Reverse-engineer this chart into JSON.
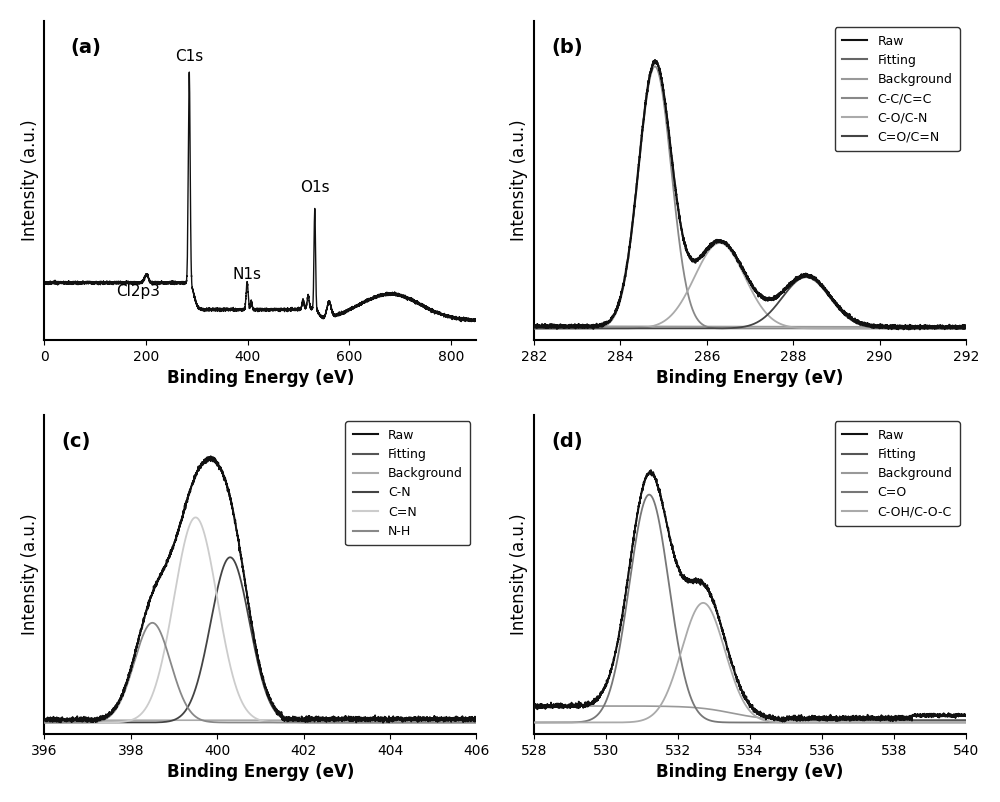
{
  "fig_width": 10.0,
  "fig_height": 8.02,
  "background_color": "#ffffff",
  "panel_a": {
    "label": "(a)",
    "xlabel": "Binding Energy (eV)",
    "ylabel": "Intensity (a.u.)",
    "xlim": [
      0,
      850
    ],
    "xticks": [
      0,
      200,
      400,
      600,
      800
    ]
  },
  "panel_b": {
    "label": "(b)",
    "xlabel": "Binding Energy (eV)",
    "ylabel": "Intensity (a.u.)",
    "xlim": [
      282,
      292
    ],
    "xticks": [
      282,
      284,
      286,
      288,
      290,
      292
    ],
    "legend_entries": [
      "Raw",
      "Fitting",
      "Background",
      "C-C/C=C",
      "C-O/C-N",
      "C=O/C=N"
    ],
    "legend_colors": [
      "#111111",
      "#666666",
      "#999999",
      "#888888",
      "#aaaaaa",
      "#444444"
    ]
  },
  "panel_c": {
    "label": "(c)",
    "xlabel": "Binding Energy (eV)",
    "ylabel": "Intensity (a.u.)",
    "xlim": [
      396,
      406
    ],
    "xticks": [
      396,
      398,
      400,
      402,
      404,
      406
    ],
    "legend_entries": [
      "Raw",
      "Fitting",
      "Background",
      "C-N",
      "C=N",
      "N-H"
    ],
    "legend_colors": [
      "#111111",
      "#555555",
      "#aaaaaa",
      "#444444",
      "#cccccc",
      "#888888"
    ]
  },
  "panel_d": {
    "label": "(d)",
    "xlabel": "Binding Energy (eV)",
    "ylabel": "Intensity (a.u.)",
    "xlim": [
      528,
      540
    ],
    "xticks": [
      528,
      530,
      532,
      534,
      536,
      538,
      540
    ],
    "legend_entries": [
      "Raw",
      "Fitting",
      "Background",
      "C=O",
      "C-OH/C-O-C"
    ],
    "legend_colors": [
      "#111111",
      "#555555",
      "#999999",
      "#777777",
      "#aaaaaa"
    ]
  }
}
